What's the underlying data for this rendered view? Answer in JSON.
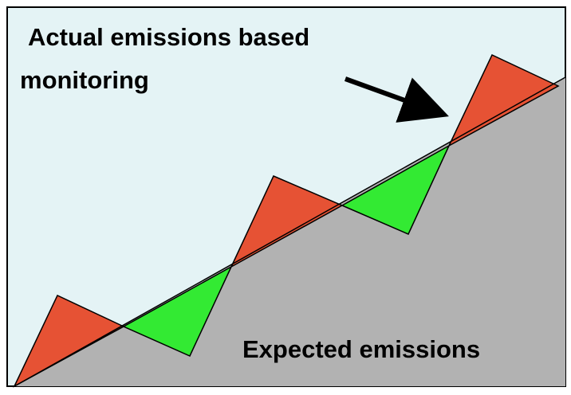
{
  "labels": {
    "top": [
      "Actual emissions based",
      "monitoring"
    ],
    "bottom": "Expected emissions"
  },
  "colors": {
    "background": "#e4f3f5",
    "expected_area": "#b2b2b2",
    "over_triangle": "#e65234",
    "under_triangle": "#33ea33",
    "outline": "#000000"
  },
  "icons": {
    "arrow": "arrow-pointer-icon"
  }
}
